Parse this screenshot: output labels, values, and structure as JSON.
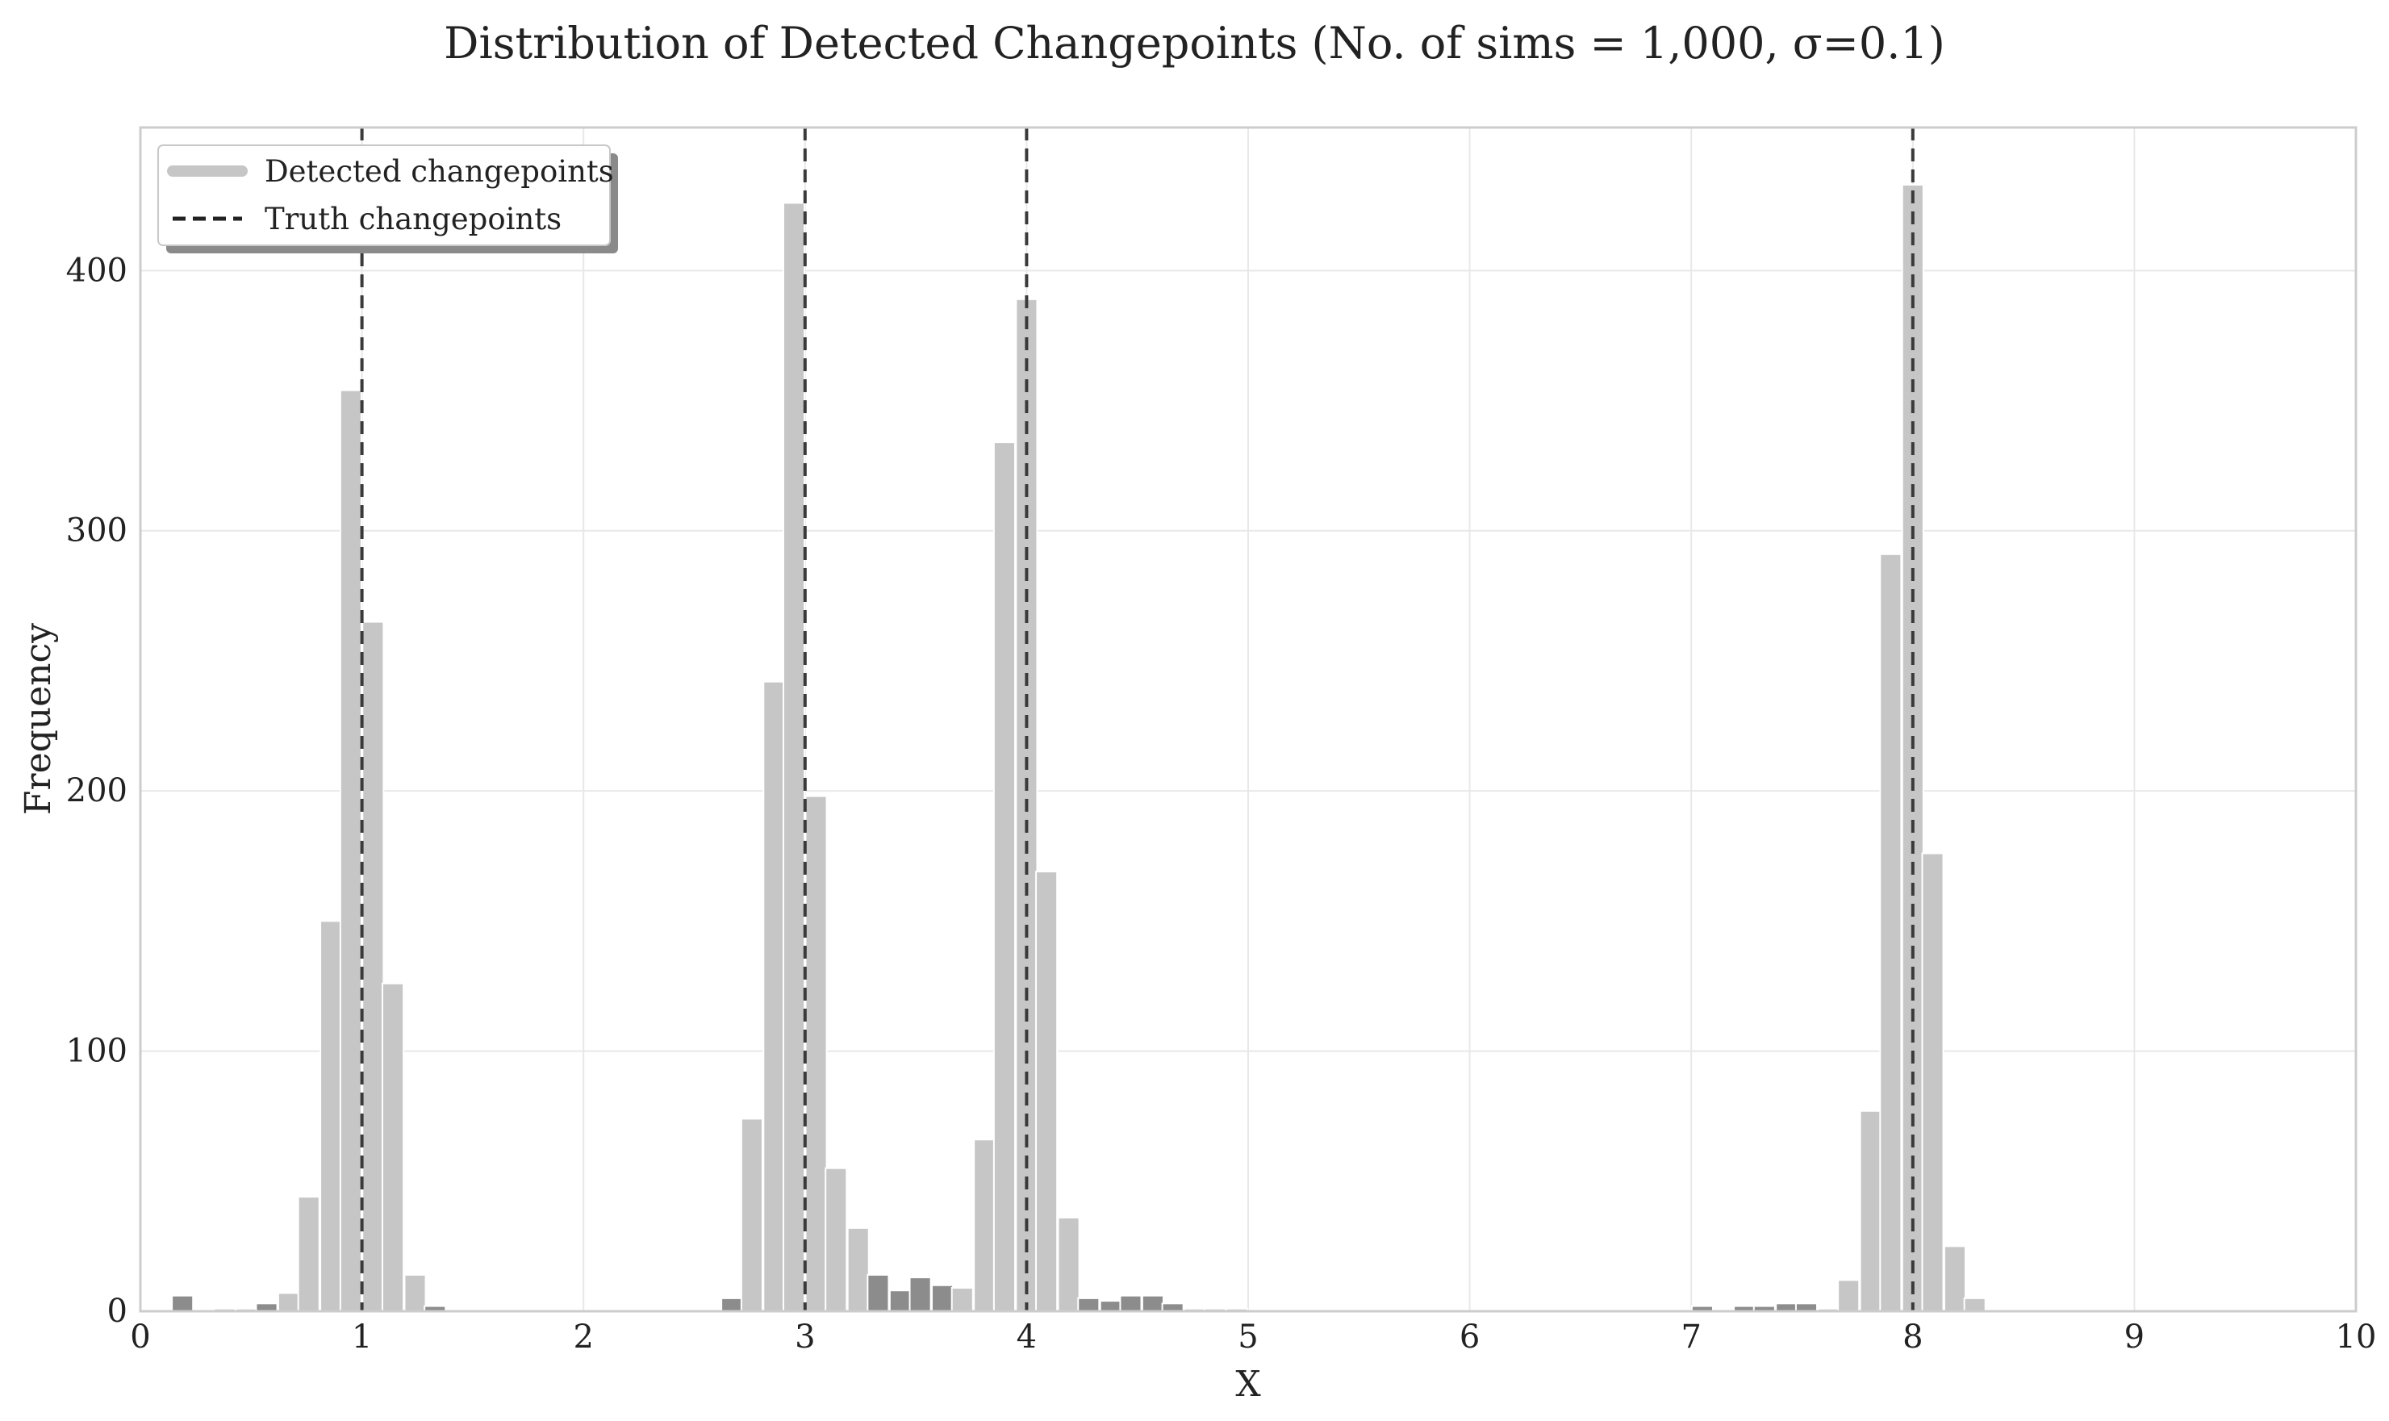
{
  "chart_data": {
    "type": "bar",
    "title": "Distribution of Detected Changepoints (No. of sims = 1,000, σ=0.1)",
    "xlabel": "X",
    "ylabel": "Frequency",
    "xlim": [
      0,
      10
    ],
    "ylim": [
      0,
      455
    ],
    "x_ticks": [
      0,
      1,
      2,
      3,
      4,
      5,
      6,
      7,
      8,
      9,
      10
    ],
    "y_ticks": [
      0,
      100,
      200,
      300,
      400
    ],
    "grid": true,
    "legend_position": "top-left",
    "bin_width": 0.095,
    "series": [
      {
        "name": "Detected changepoints",
        "color": "#c6c6c6",
        "note_color_dark": "#8c8c8c",
        "bins": [
          {
            "x": 0.19,
            "value": 6,
            "shade": "dark"
          },
          {
            "x": 0.38,
            "value": 1,
            "shade": "light"
          },
          {
            "x": 0.48,
            "value": 1,
            "shade": "light"
          },
          {
            "x": 0.57,
            "value": 3,
            "shade": "dark"
          },
          {
            "x": 0.67,
            "value": 7,
            "shade": "light"
          },
          {
            "x": 0.76,
            "value": 44,
            "shade": "light"
          },
          {
            "x": 0.86,
            "value": 150,
            "shade": "light"
          },
          {
            "x": 0.95,
            "value": 354,
            "shade": "light"
          },
          {
            "x": 1.05,
            "value": 265,
            "shade": "light"
          },
          {
            "x": 1.14,
            "value": 126,
            "shade": "light"
          },
          {
            "x": 1.24,
            "value": 14,
            "shade": "light"
          },
          {
            "x": 1.33,
            "value": 2,
            "shade": "dark"
          },
          {
            "x": 2.67,
            "value": 5,
            "shade": "dark"
          },
          {
            "x": 2.76,
            "value": 74,
            "shade": "light"
          },
          {
            "x": 2.86,
            "value": 242,
            "shade": "light"
          },
          {
            "x": 2.95,
            "value": 426,
            "shade": "light"
          },
          {
            "x": 3.05,
            "value": 198,
            "shade": "light"
          },
          {
            "x": 3.14,
            "value": 55,
            "shade": "light"
          },
          {
            "x": 3.24,
            "value": 32,
            "shade": "light"
          },
          {
            "x": 3.33,
            "value": 14,
            "shade": "dark"
          },
          {
            "x": 3.43,
            "value": 8,
            "shade": "dark"
          },
          {
            "x": 3.52,
            "value": 13,
            "shade": "dark"
          },
          {
            "x": 3.62,
            "value": 10,
            "shade": "dark"
          },
          {
            "x": 3.71,
            "value": 9,
            "shade": "light"
          },
          {
            "x": 3.81,
            "value": 66,
            "shade": "light"
          },
          {
            "x": 3.9,
            "value": 334,
            "shade": "light"
          },
          {
            "x": 4.0,
            "value": 389,
            "shade": "light"
          },
          {
            "x": 4.09,
            "value": 169,
            "shade": "light"
          },
          {
            "x": 4.19,
            "value": 36,
            "shade": "light"
          },
          {
            "x": 4.28,
            "value": 5,
            "shade": "dark"
          },
          {
            "x": 4.38,
            "value": 4,
            "shade": "dark"
          },
          {
            "x": 4.47,
            "value": 6,
            "shade": "dark"
          },
          {
            "x": 4.57,
            "value": 6,
            "shade": "dark"
          },
          {
            "x": 4.66,
            "value": 3,
            "shade": "dark"
          },
          {
            "x": 4.76,
            "value": 1,
            "shade": "light"
          },
          {
            "x": 4.85,
            "value": 1,
            "shade": "light"
          },
          {
            "x": 4.95,
            "value": 1,
            "shade": "light"
          },
          {
            "x": 7.05,
            "value": 2,
            "shade": "dark"
          },
          {
            "x": 7.24,
            "value": 2,
            "shade": "dark"
          },
          {
            "x": 7.33,
            "value": 2,
            "shade": "dark"
          },
          {
            "x": 7.43,
            "value": 3,
            "shade": "dark"
          },
          {
            "x": 7.52,
            "value": 3,
            "shade": "dark"
          },
          {
            "x": 7.62,
            "value": 1,
            "shade": "light"
          },
          {
            "x": 7.71,
            "value": 12,
            "shade": "light"
          },
          {
            "x": 7.81,
            "value": 77,
            "shade": "light"
          },
          {
            "x": 7.9,
            "value": 291,
            "shade": "light"
          },
          {
            "x": 8.0,
            "value": 433,
            "shade": "light"
          },
          {
            "x": 8.09,
            "value": 176,
            "shade": "light"
          },
          {
            "x": 8.19,
            "value": 25,
            "shade": "light"
          },
          {
            "x": 8.28,
            "value": 5,
            "shade": "light"
          }
        ]
      },
      {
        "name": "Truth changepoints",
        "color": "#222222",
        "style": "dashed",
        "x": [
          1,
          3,
          4,
          8
        ]
      }
    ]
  }
}
